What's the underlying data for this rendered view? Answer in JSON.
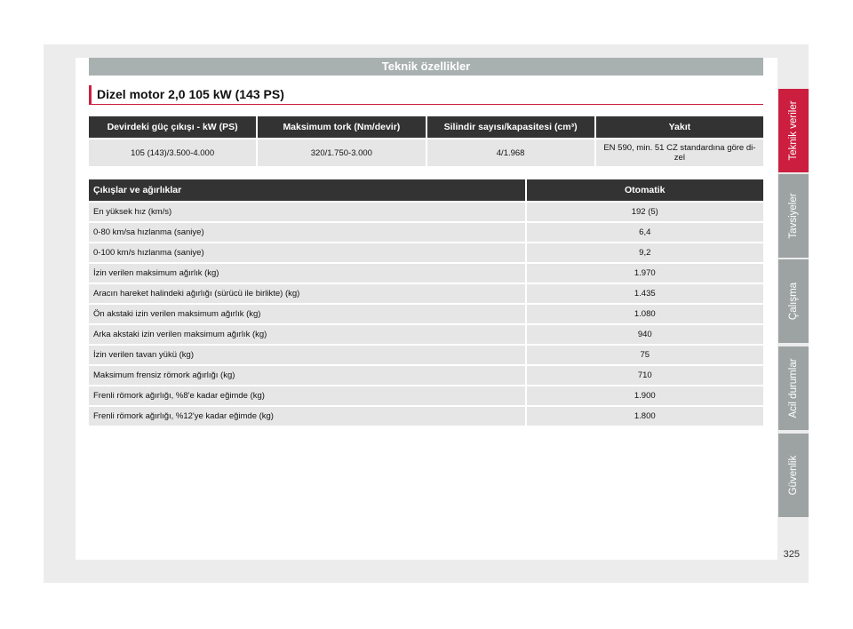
{
  "header": {
    "title": "Teknik özellikler"
  },
  "subtitle": "Dizel motor 2,0 105 kW (143 PS)",
  "engine_table": {
    "headers": [
      "Devirdeki güç çıkışı - kW (PS)",
      "Maksimum tork (Nm/devir)",
      "Silindir sayısı/kapasitesi (cm³)",
      "Yakıt"
    ],
    "row": [
      "105 (143)/3.500-4.000",
      "320/1.750-3.000",
      "4/1.968",
      "EN 590, min. 51 CZ standardına göre di-zel"
    ]
  },
  "perf_table": {
    "headers": [
      "Çıkışlar ve ağırlıklar",
      "Otomatik"
    ],
    "rows": [
      [
        "En yüksek hız (km/s)",
        "192 (5)"
      ],
      [
        "0-80 km/sa hızlanma (saniye)",
        "6,4"
      ],
      [
        "0-100 km/s hızlanma (saniye)",
        "9,2"
      ],
      [
        "İzin verilen maksimum ağırlık (kg)",
        "1.970"
      ],
      [
        "Aracın hareket halindeki ağırlığı (sürücü ile birlikte) (kg)",
        "1.435"
      ],
      [
        "Ön akstaki izin verilen maksimum ağırlık (kg)",
        "1.080"
      ],
      [
        "Arka akstaki izin verilen maksimum ağırlık (kg)",
        "940"
      ],
      [
        "İzin verilen tavan yükü (kg)",
        "75"
      ],
      [
        "Maksimum frensiz römork ağırlığı (kg)",
        "710"
      ],
      [
        "Frenli römork ağırlığı, %8'e kadar eğimde (kg)",
        "1.900"
      ],
      [
        "Frenli römork ağırlığı, %12'ye kadar eğimde (kg)",
        "1.800"
      ]
    ]
  },
  "tabs": [
    "Teknik veriler",
    "Tavsiyeler",
    "Çalışma",
    "Acil durumlar",
    "Güvenlik"
  ],
  "page_number": "325",
  "colors": {
    "accent": "#cc1f3f",
    "tab_gray": "#9da3a3",
    "header_gray": "#a9b0b0",
    "table_header": "#333333"
  }
}
